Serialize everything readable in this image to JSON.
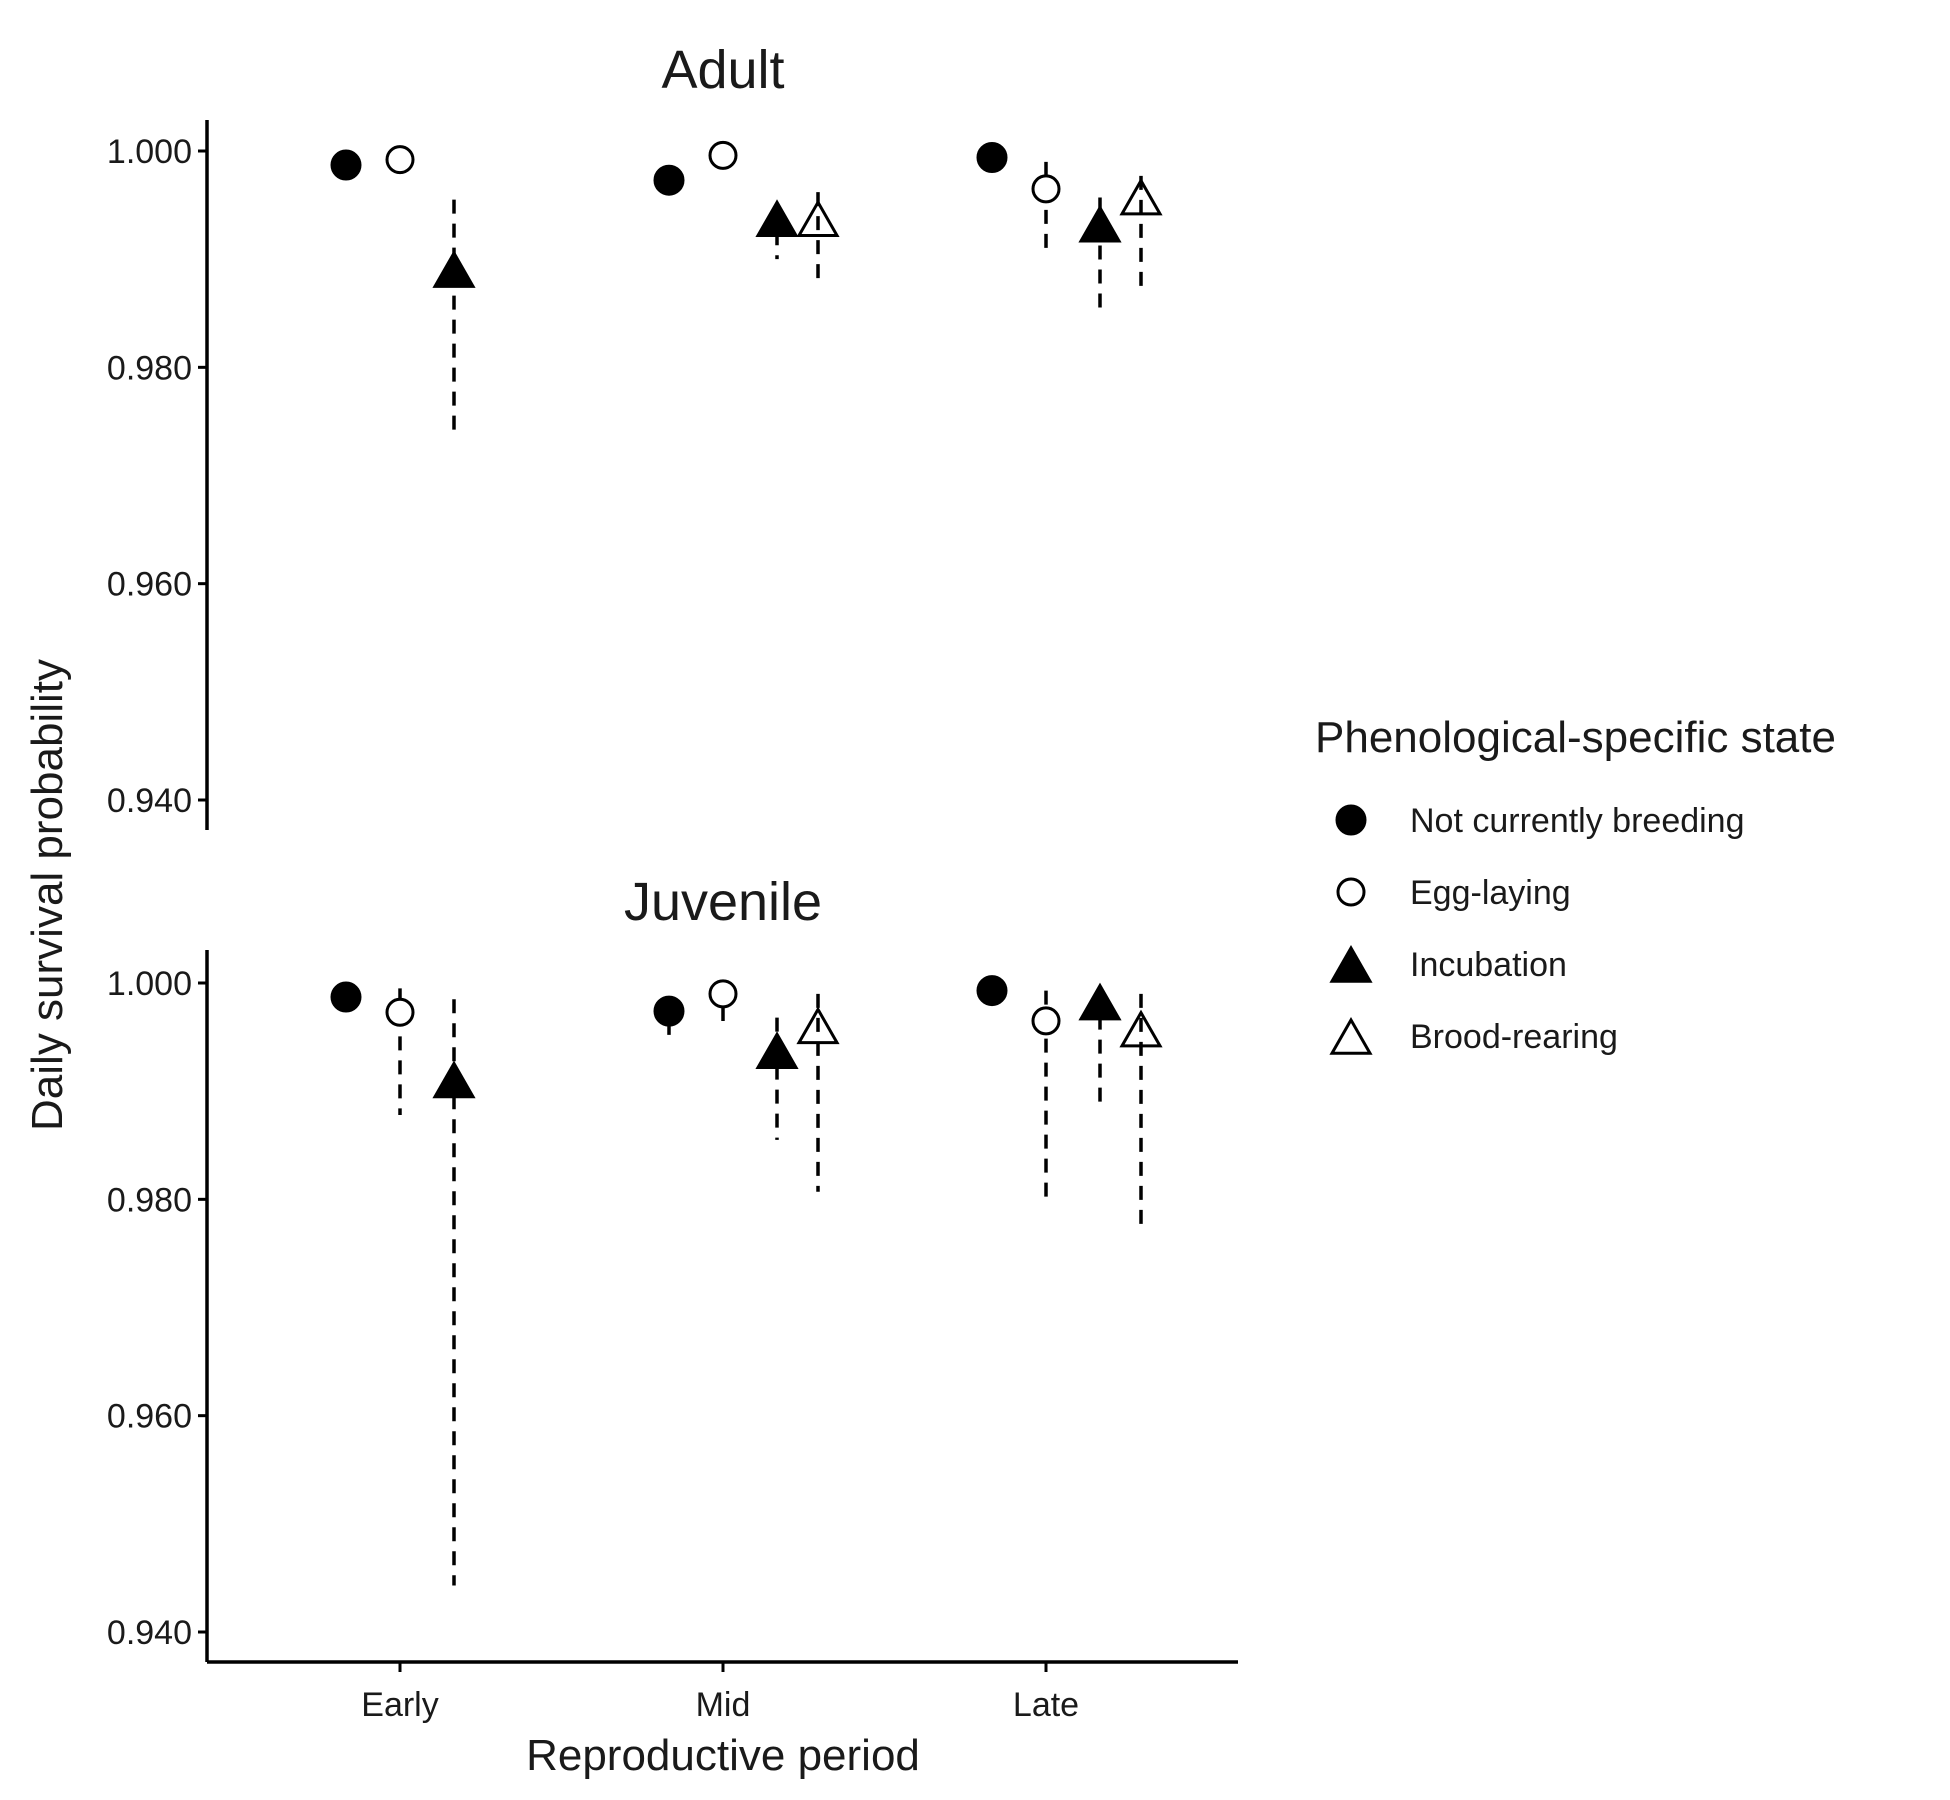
{
  "chart_data": {
    "type": "scatter",
    "xlabel": "Reproductive period",
    "ylabel": "Daily survival probability",
    "categories": [
      "Early",
      "Mid",
      "Late"
    ],
    "yticks": [
      "0.940",
      "0.960",
      "0.980",
      "1.000"
    ],
    "ylim": [
      0.937,
      1.003
    ],
    "legend": {
      "title": "Phenological-specific state",
      "position": "right",
      "entries": [
        {
          "name": "Not currently breeding",
          "marker": "circle",
          "filled": true
        },
        {
          "name": "Egg-laying",
          "marker": "circle",
          "filled": false
        },
        {
          "name": "Incubation",
          "marker": "triangle",
          "filled": true
        },
        {
          "name": "Brood-rearing",
          "marker": "triangle",
          "filled": false
        }
      ]
    },
    "panels": [
      {
        "title": "Adult",
        "series": [
          {
            "name": "Not currently breeding",
            "points": [
              {
                "x": "Early",
                "y": 0.9987,
                "low": null,
                "high": null
              },
              {
                "x": "Mid",
                "y": 0.9973,
                "low": null,
                "high": null
              },
              {
                "x": "Late",
                "y": 0.9994,
                "low": null,
                "high": null
              }
            ]
          },
          {
            "name": "Egg-laying",
            "points": [
              {
                "x": "Early",
                "y": 0.9992,
                "low": 0.9983,
                "high": 0.9999
              },
              {
                "x": "Mid",
                "y": 0.9996,
                "low": 0.9989,
                "high": 1.0
              },
              {
                "x": "Late",
                "y": 0.9965,
                "low": 0.9905,
                "high": 0.999
              }
            ]
          },
          {
            "name": "Incubation",
            "points": [
              {
                "x": "Early",
                "y": 0.9888,
                "low": 0.9735,
                "high": 0.9955
              },
              {
                "x": "Mid",
                "y": 0.9935,
                "low": 0.99,
                "high": 0.9948
              },
              {
                "x": "Late",
                "y": 0.993,
                "low": 0.9853,
                "high": 0.9957
              }
            ]
          },
          {
            "name": "Brood-rearing",
            "points": [
              {
                "x": "Mid",
                "y": 0.9935,
                "low": 0.9877,
                "high": 0.9962
              },
              {
                "x": "Late",
                "y": 0.9955,
                "low": 0.9868,
                "high": 0.9977
              }
            ]
          }
        ]
      },
      {
        "title": "Juvenile",
        "series": [
          {
            "name": "Not currently breeding",
            "points": [
              {
                "x": "Early",
                "y": 0.9987,
                "low": null,
                "high": null
              },
              {
                "x": "Mid",
                "y": 0.9974,
                "low": 0.9952,
                "high": 0.9985
              },
              {
                "x": "Late",
                "y": 0.9993,
                "low": null,
                "high": null
              }
            ]
          },
          {
            "name": "Egg-laying",
            "points": [
              {
                "x": "Early",
                "y": 0.9973,
                "low": 0.9878,
                "high": 0.9995
              },
              {
                "x": "Mid",
                "y": 0.999,
                "low": 0.9958,
                "high": 1.0
              },
              {
                "x": "Late",
                "y": 0.9965,
                "low": 0.9795,
                "high": 0.9993
              }
            ]
          },
          {
            "name": "Incubation",
            "points": [
              {
                "x": "Early",
                "y": 0.9908,
                "low": 0.9443,
                "high": 0.9985
              },
              {
                "x": "Mid",
                "y": 0.9935,
                "low": 0.9855,
                "high": 0.9968
              },
              {
                "x": "Late",
                "y": 0.998,
                "low": 0.9888,
                "high": 0.9992
              }
            ]
          },
          {
            "name": "Brood-rearing",
            "points": [
              {
                "x": "Mid",
                "y": 0.9958,
                "low": 0.9807,
                "high": 0.999
              },
              {
                "x": "Late",
                "y": 0.9955,
                "low": 0.977,
                "high": 0.999
              }
            ]
          }
        ]
      }
    ]
  }
}
